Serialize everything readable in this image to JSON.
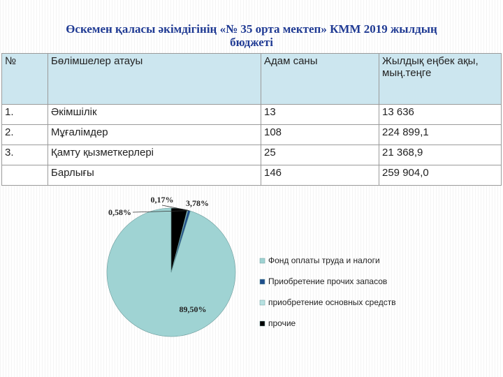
{
  "title_line1": "Өскемен қаласы әкімдігінің «№ 35 орта мектеп» КММ 2019 жылдың",
  "title_line2": "бюджеті",
  "table": {
    "headers": [
      "№",
      "Бөлімшелер атауы",
      "Адам саны",
      "Жылдық еңбек ақы, мың.теңге"
    ],
    "rows": [
      [
        "1.",
        "Әкімшілік",
        "13",
        "13 636"
      ],
      [
        "2.",
        "Мұғалімдер",
        "108",
        "224 899,1"
      ],
      [
        "3.",
        "Қамту қызметкерлері",
        "25",
        "21 368,9"
      ],
      [
        "",
        "Барлығы",
        "146",
        "259 904,0"
      ]
    ]
  },
  "chart_data": {
    "type": "pie",
    "categories": [
      "Фонд оплаты труда и налоги",
      "Приобретение прочих запасов",
      "приобретение основных средств",
      "прочие"
    ],
    "values": [
      89.5,
      0.58,
      0.17,
      3.78
    ],
    "data_labels": [
      "89,50%",
      "0,58%",
      "0,17%",
      "3,78%"
    ],
    "colors": [
      "#9fd3d3",
      "#1f4e8c",
      "#b7e1e1",
      "#000000"
    ],
    "legend": "right"
  }
}
